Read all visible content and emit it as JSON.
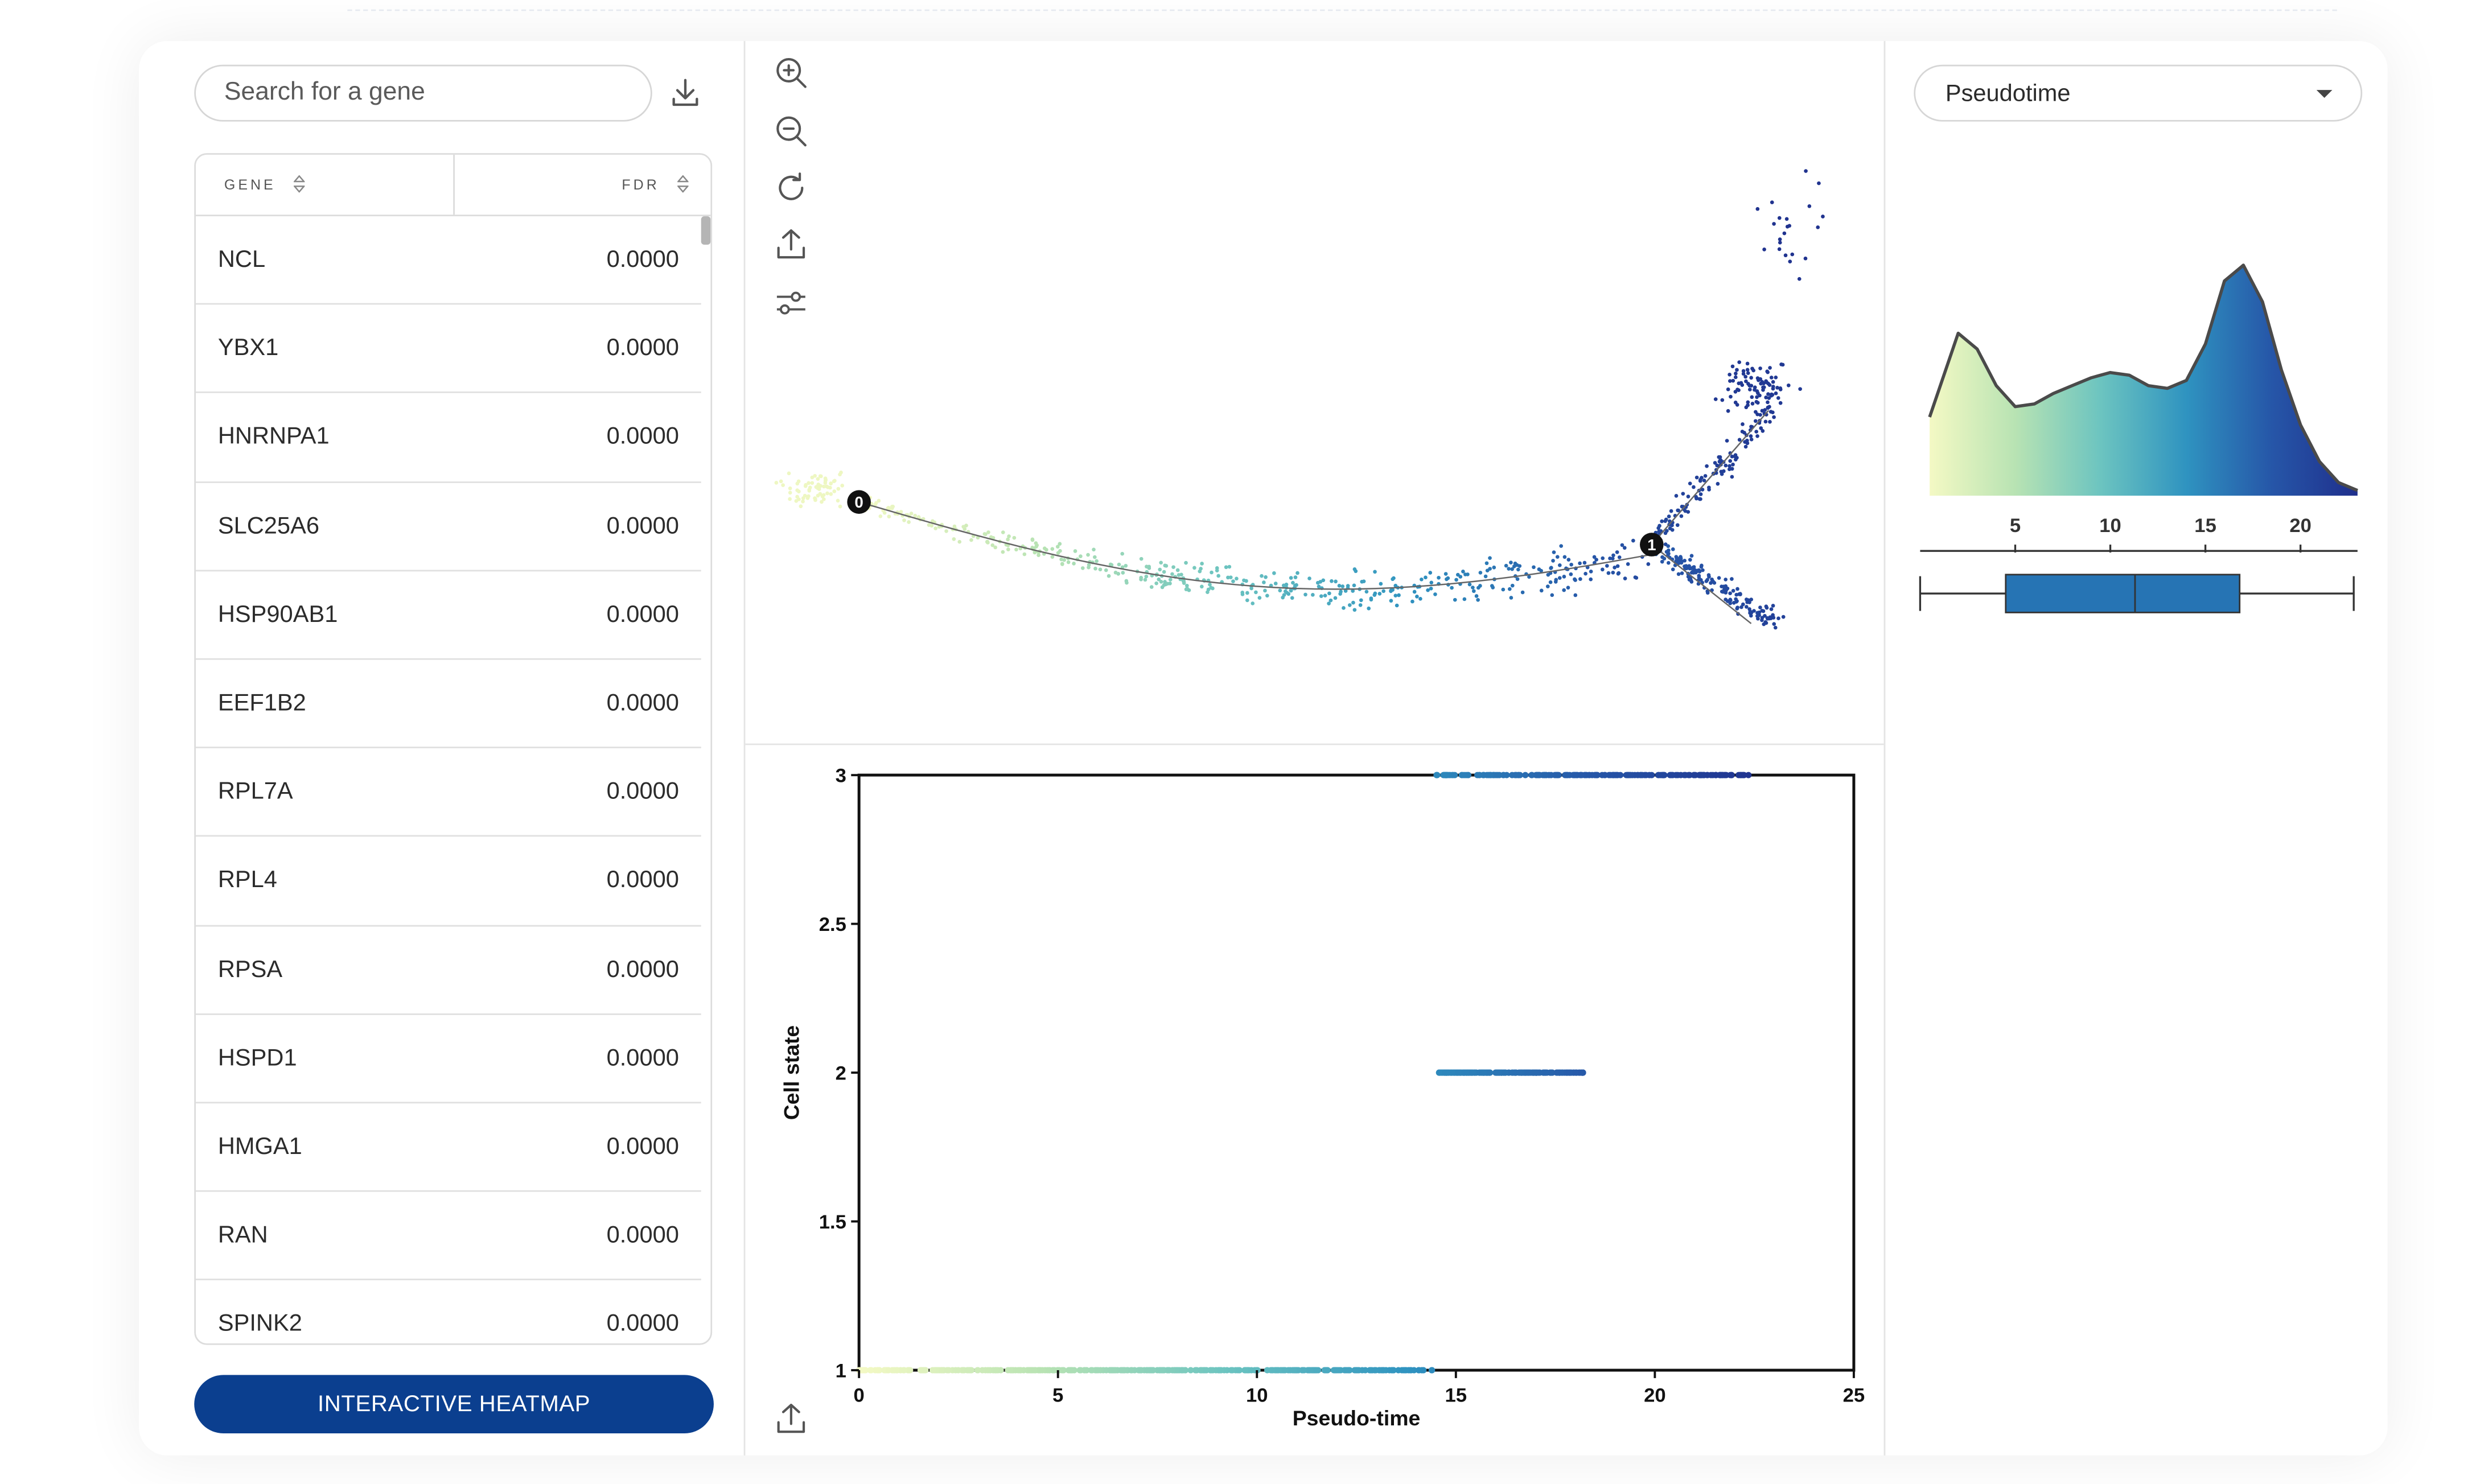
{
  "search": {
    "placeholder": "Search for a gene"
  },
  "gene_table": {
    "columns": [
      "GENE",
      "FDR"
    ],
    "rows": [
      {
        "gene": "NCL",
        "fdr": "0.0000"
      },
      {
        "gene": "YBX1",
        "fdr": "0.0000"
      },
      {
        "gene": "HNRNPA1",
        "fdr": "0.0000"
      },
      {
        "gene": "SLC25A6",
        "fdr": "0.0000"
      },
      {
        "gene": "HSP90AB1",
        "fdr": "0.0000"
      },
      {
        "gene": "EEF1B2",
        "fdr": "0.0000"
      },
      {
        "gene": "RPL7A",
        "fdr": "0.0000"
      },
      {
        "gene": "RPL4",
        "fdr": "0.0000"
      },
      {
        "gene": "RPSA",
        "fdr": "0.0000"
      },
      {
        "gene": "HSPD1",
        "fdr": "0.0000"
      },
      {
        "gene": "HMGA1",
        "fdr": "0.0000"
      },
      {
        "gene": "RAN",
        "fdr": "0.0000"
      },
      {
        "gene": "SPINK2",
        "fdr": "0.0000"
      }
    ]
  },
  "heatmap_button": {
    "label": "INTERACTIVE HEATMAP"
  },
  "toolbar": {
    "icons": [
      "zoom-in-icon",
      "zoom-out-icon",
      "reset-icon",
      "export-icon",
      "settings-sliders-icon"
    ]
  },
  "color_by": {
    "selected": "Pseudotime"
  },
  "colors": {
    "accent": "#0b3f8f",
    "box": "#2674b4",
    "ramp": [
      "#f4f9c4",
      "#b8e3b3",
      "#6cc4c0",
      "#2f93c0",
      "#2656a8",
      "#1f2f8c"
    ]
  },
  "chart_data": [
    {
      "type": "scatter",
      "name": "trajectory",
      "nodes": [
        {
          "label": "0",
          "pseudotime": 0
        },
        {
          "label": "1",
          "pseudotime": 20
        }
      ],
      "branches": [
        "root → 1",
        "1 → upper (state 3)",
        "1 → lower (state 2)"
      ],
      "color_scale": "pseudotime",
      "pseudotime_range": [
        0,
        23
      ]
    },
    {
      "type": "scatter",
      "name": "cell-state-vs-pseudotime",
      "xlabel": "Pseudo-time",
      "ylabel": "Cell state",
      "xlim": [
        0,
        25
      ],
      "ylim": [
        1,
        3
      ],
      "xticks": [
        0,
        5,
        10,
        15,
        20,
        25
      ],
      "yticks": [
        "1",
        "1.5",
        "2",
        "2.5",
        "3"
      ],
      "series": [
        {
          "state": 1,
          "x_range": [
            0,
            14.5
          ]
        },
        {
          "state": 2,
          "x_range": [
            14.5,
            18.2
          ]
        },
        {
          "state": 3,
          "x_range": [
            14.5,
            22.5
          ]
        }
      ]
    },
    {
      "type": "area",
      "name": "pseudotime-density",
      "x": [
        0.5,
        2,
        3,
        4,
        5,
        6,
        7,
        8,
        9,
        10,
        11,
        12,
        13,
        14,
        15,
        16,
        17,
        18,
        19,
        20,
        21,
        22,
        23
      ],
      "y": [
        0.3,
        0.62,
        0.56,
        0.42,
        0.34,
        0.35,
        0.39,
        0.42,
        0.45,
        0.47,
        0.46,
        0.42,
        0.41,
        0.44,
        0.58,
        0.82,
        0.88,
        0.74,
        0.48,
        0.27,
        0.13,
        0.05,
        0.02
      ],
      "xticks": [
        5,
        10,
        15,
        20
      ],
      "xlim": [
        0,
        23
      ],
      "boxplot": {
        "min": 0,
        "q1": 4.5,
        "median": 11.3,
        "q3": 16.8,
        "max": 22.8
      }
    }
  ]
}
